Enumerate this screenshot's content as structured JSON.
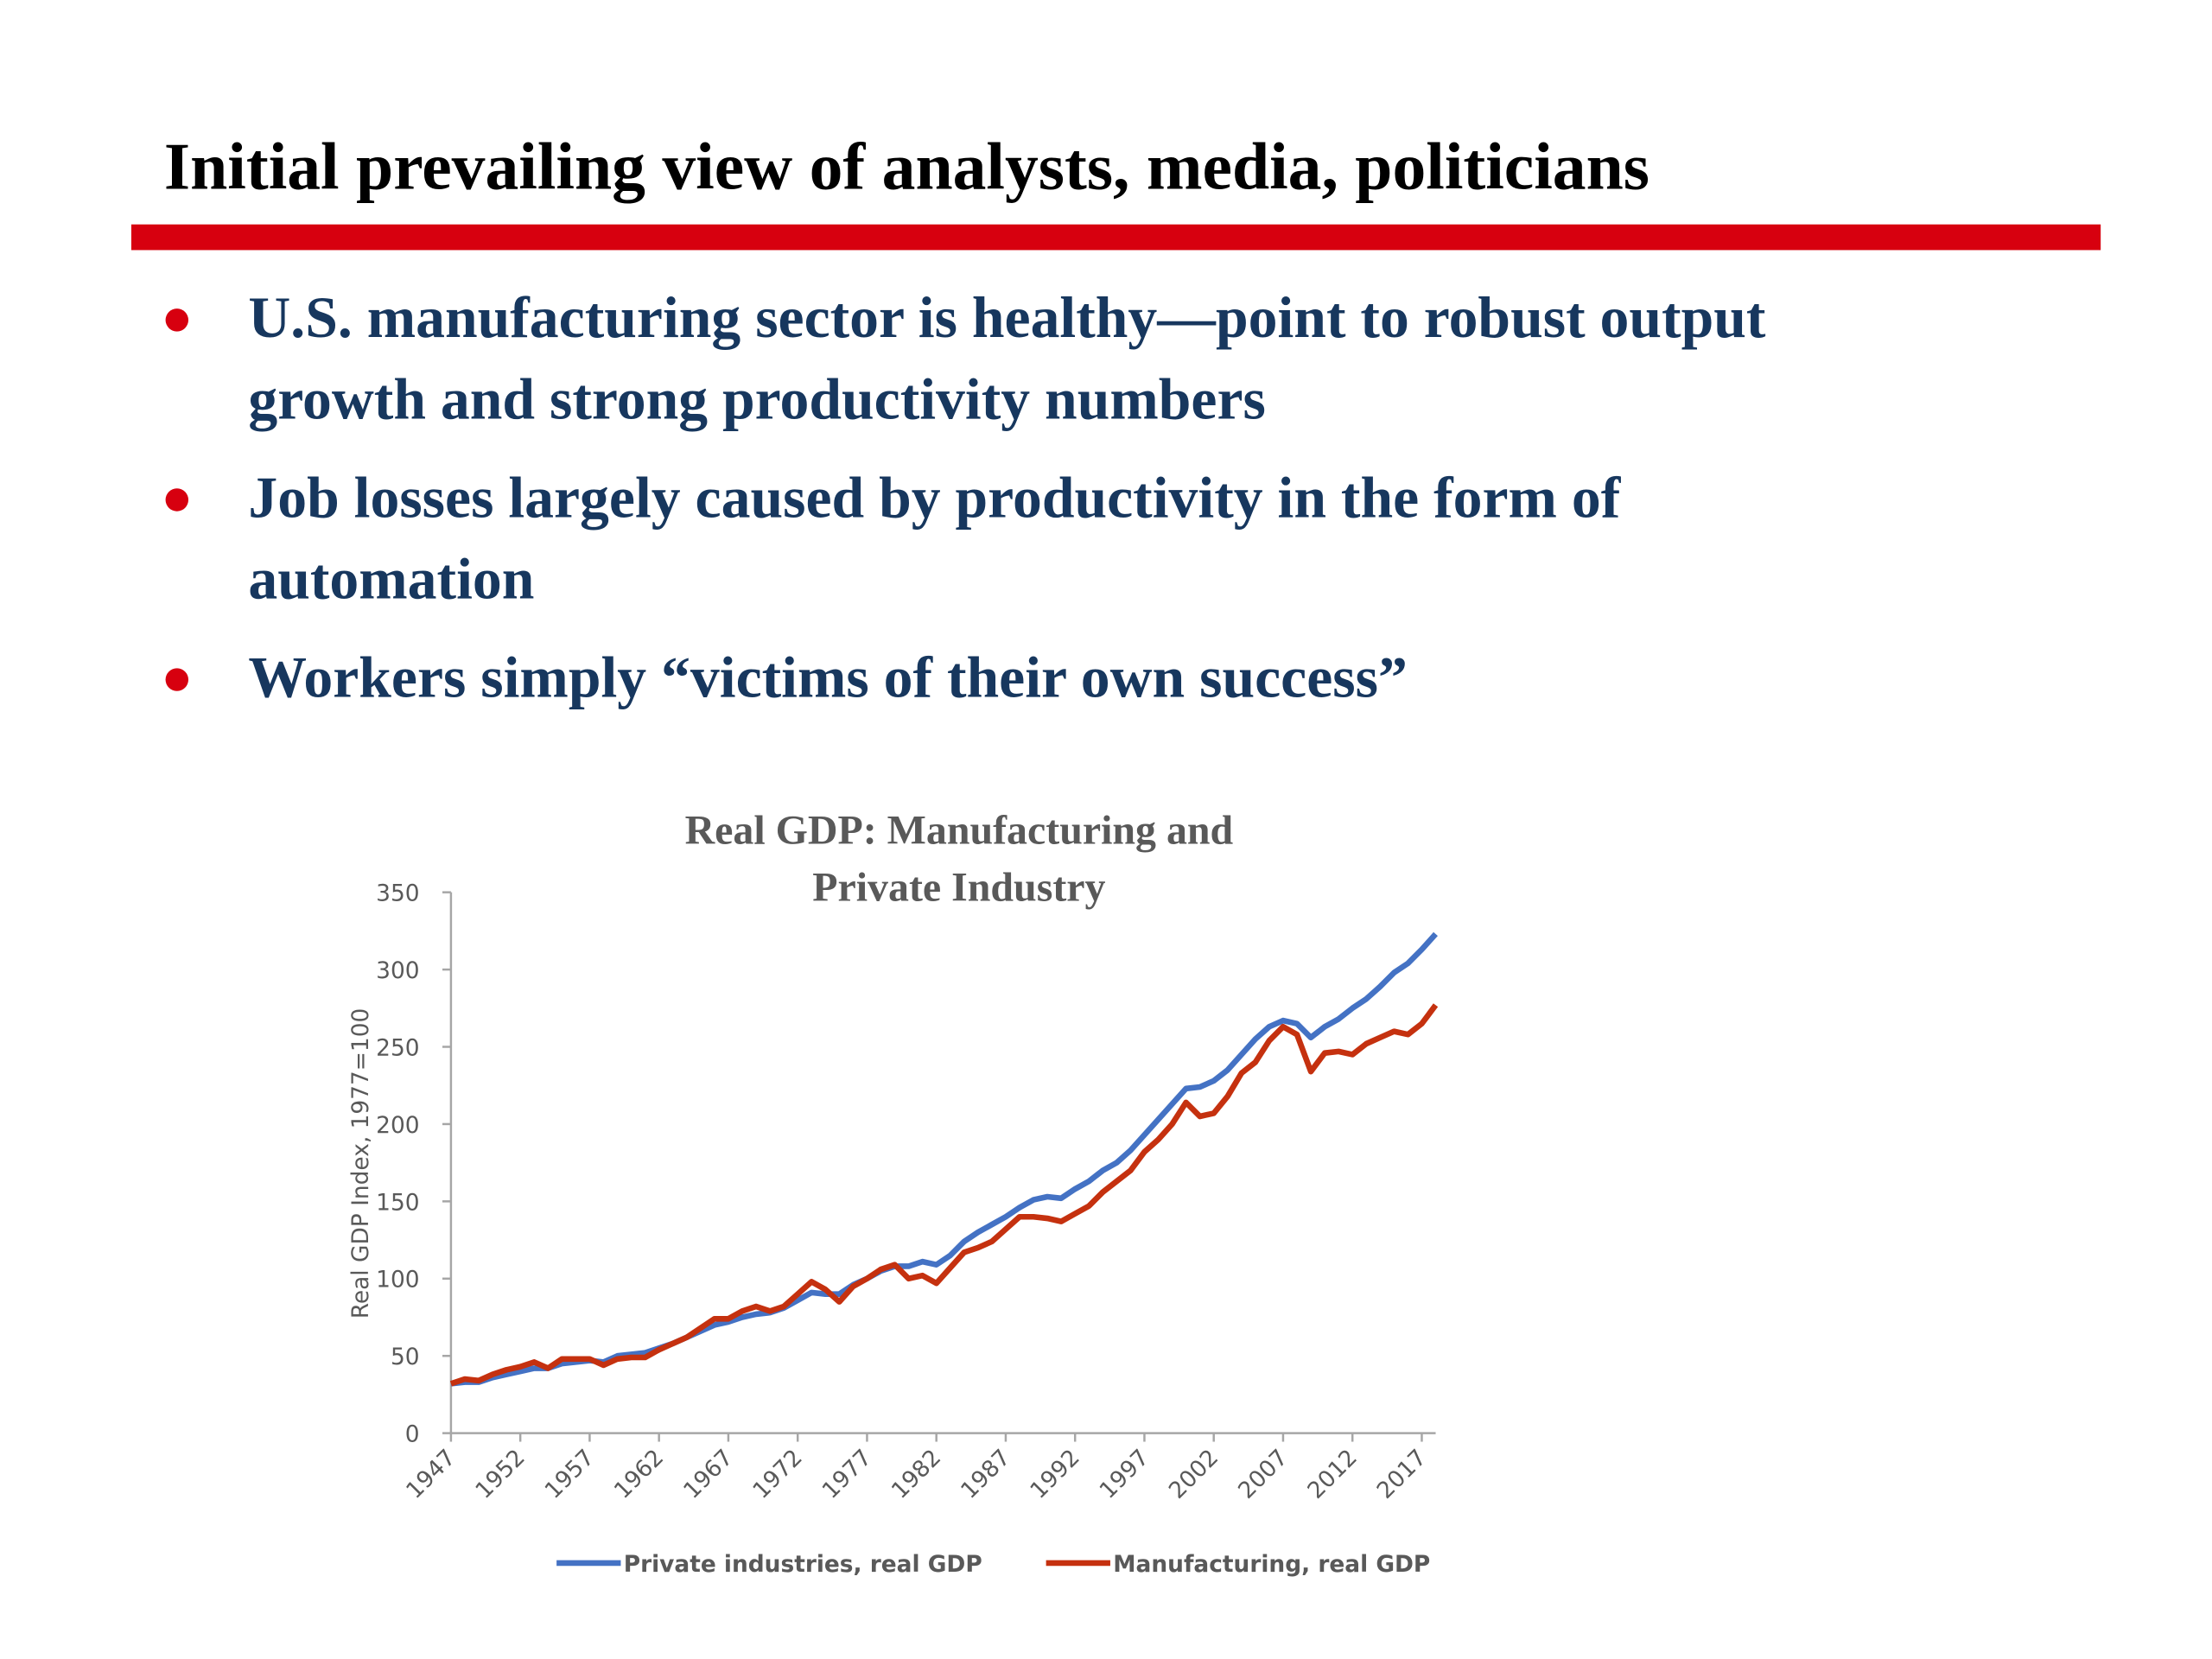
{
  "header": {
    "title": "Initial prevailing view of analysts, media, politicians"
  },
  "bullets": [
    [
      "U.S. manufacturing sector is healthy—point to robust output",
      "growth and strong productivity numbers"
    ],
    [
      "Job losses largely caused by productivity in the form of",
      "automation"
    ],
    [
      "Workers simply “victims of their own success”"
    ]
  ],
  "chart_data": {
    "type": "line",
    "title": "Real GDP: Manufacturing and Private Industry",
    "y_label": "Real GDP Index, 1977=100",
    "x": [
      1947,
      1948,
      1949,
      1950,
      1951,
      1952,
      1953,
      1954,
      1955,
      1956,
      1957,
      1958,
      1959,
      1960,
      1961,
      1962,
      1963,
      1964,
      1965,
      1966,
      1967,
      1968,
      1969,
      1970,
      1971,
      1972,
      1973,
      1974,
      1975,
      1976,
      1977,
      1978,
      1979,
      1980,
      1981,
      1982,
      1983,
      1984,
      1985,
      1986,
      1987,
      1988,
      1989,
      1990,
      1991,
      1992,
      1993,
      1994,
      1995,
      1996,
      1997,
      1998,
      1999,
      2000,
      2001,
      2002,
      2003,
      2004,
      2005,
      2006,
      2007,
      2008,
      2009,
      2010,
      2011,
      2012,
      2013,
      2014,
      2015,
      2016,
      2017,
      2018
    ],
    "series": [
      {
        "name": "Private industries, real GDP",
        "color": "#4472c4",
        "values": [
          32,
          33,
          33,
          36,
          38,
          40,
          42,
          42,
          45,
          46,
          47,
          46,
          50,
          51,
          52,
          55,
          58,
          62,
          66,
          70,
          72,
          75,
          77,
          78,
          81,
          86,
          91,
          90,
          90,
          96,
          100,
          105,
          108,
          108,
          111,
          109,
          115,
          124,
          130,
          135,
          140,
          146,
          151,
          153,
          152,
          158,
          163,
          170,
          175,
          183,
          193,
          203,
          213,
          223,
          224,
          228,
          235,
          245,
          255,
          263,
          267,
          265,
          256,
          263,
          268,
          275,
          281,
          289,
          298,
          304,
          313,
          323
        ]
      },
      {
        "name": "Manufacturing, real GDP",
        "color": "#c5310f",
        "values": [
          32,
          35,
          34,
          38,
          41,
          43,
          46,
          42,
          48,
          48,
          48,
          44,
          48,
          49,
          49,
          54,
          58,
          62,
          68,
          74,
          74,
          79,
          82,
          79,
          82,
          90,
          98,
          93,
          85,
          95,
          100,
          106,
          109,
          100,
          102,
          97,
          107,
          117,
          120,
          124,
          132,
          140,
          140,
          139,
          137,
          142,
          147,
          156,
          163,
          170,
          182,
          190,
          200,
          214,
          205,
          207,
          218,
          233,
          240,
          254,
          263,
          258,
          234,
          246,
          247,
          245,
          252,
          256,
          260,
          258,
          265,
          277
        ]
      }
    ],
    "xlim": [
      1947,
      2018
    ],
    "xticks": [
      1947,
      1952,
      1957,
      1962,
      1967,
      1972,
      1977,
      1982,
      1987,
      1992,
      1997,
      2002,
      2007,
      2012,
      2017
    ],
    "ylim": [
      0,
      350
    ],
    "yticks": [
      0,
      50,
      100,
      150,
      200,
      250,
      300,
      350
    ],
    "legend": "bottom"
  }
}
